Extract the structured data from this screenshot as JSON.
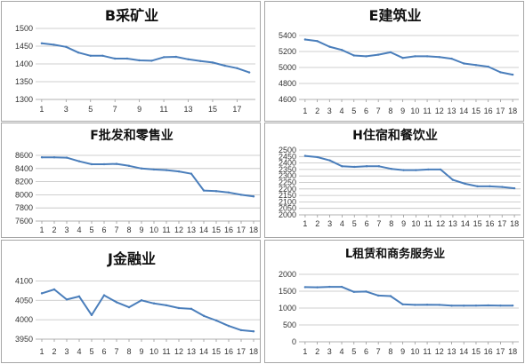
{
  "chart_data": [
    {
      "type": "line",
      "title": "B采矿业",
      "x": [
        1,
        2,
        3,
        4,
        5,
        6,
        7,
        8,
        9,
        10,
        11,
        12,
        13,
        14,
        15,
        16,
        17,
        18
      ],
      "xticks": [
        1,
        3,
        5,
        7,
        9,
        11,
        13,
        15,
        17
      ],
      "yticks": [
        1300,
        1350,
        1400,
        1450,
        1500
      ],
      "ylim": [
        1300,
        1500
      ],
      "grid": true,
      "color": "#4a7ebb",
      "values": [
        1458,
        1454,
        1448,
        1432,
        1423,
        1423,
        1415,
        1415,
        1410,
        1409,
        1419,
        1420,
        1413,
        1408,
        1404,
        1395,
        1388,
        1376
      ]
    },
    {
      "type": "line",
      "title": "E建筑业",
      "x": [
        1,
        2,
        3,
        4,
        5,
        6,
        7,
        8,
        9,
        10,
        11,
        12,
        13,
        14,
        15,
        16,
        17,
        18
      ],
      "xticks": [
        1,
        2,
        3,
        4,
        5,
        6,
        7,
        8,
        9,
        10,
        11,
        12,
        13,
        14,
        15,
        16,
        17,
        18
      ],
      "yticks": [
        4600,
        4800,
        5000,
        5200,
        5400
      ],
      "ylim": [
        4600,
        5400
      ],
      "grid": true,
      "color": "#4a7ebb",
      "values": [
        5350,
        5330,
        5260,
        5220,
        5150,
        5140,
        5160,
        5190,
        5120,
        5140,
        5140,
        5130,
        5110,
        5050,
        5030,
        5010,
        4940,
        4910
      ]
    },
    {
      "type": "line",
      "title": "F批发和零售业",
      "x": [
        1,
        2,
        3,
        4,
        5,
        6,
        7,
        8,
        9,
        10,
        11,
        12,
        13,
        14,
        15,
        16,
        17,
        18
      ],
      "xticks": [
        1,
        2,
        3,
        4,
        5,
        6,
        7,
        8,
        9,
        10,
        11,
        12,
        13,
        14,
        15,
        16,
        17,
        18
      ],
      "yticks": [
        7600,
        7800,
        8000,
        8200,
        8400,
        8600
      ],
      "ylim": [
        7600,
        8600
      ],
      "grid": true,
      "color": "#4a7ebb",
      "values": [
        8570,
        8570,
        8565,
        8510,
        8465,
        8465,
        8470,
        8440,
        8400,
        8385,
        8375,
        8355,
        8320,
        8065,
        8055,
        8035,
        8000,
        7975
      ]
    },
    {
      "type": "line",
      "title": "H住宿和餐饮业",
      "x": [
        1,
        2,
        3,
        4,
        5,
        6,
        7,
        8,
        9,
        10,
        11,
        12,
        13,
        14,
        15,
        16,
        17,
        18
      ],
      "xticks": [
        1,
        2,
        3,
        4,
        5,
        6,
        7,
        8,
        9,
        10,
        11,
        12,
        13,
        14,
        15,
        16,
        17,
        18
      ],
      "yticks": [
        2000,
        2050,
        2100,
        2150,
        2200,
        2250,
        2300,
        2350,
        2400,
        2450,
        2500
      ],
      "ylim": [
        2000,
        2500
      ],
      "grid": true,
      "color": "#4a7ebb",
      "values": [
        2455,
        2445,
        2420,
        2375,
        2370,
        2375,
        2375,
        2355,
        2345,
        2345,
        2350,
        2350,
        2270,
        2240,
        2220,
        2220,
        2215,
        2205
      ]
    },
    {
      "type": "line",
      "title": "J金融业",
      "x": [
        1,
        2,
        3,
        4,
        5,
        6,
        7,
        8,
        9,
        10,
        11,
        12,
        13,
        14,
        15,
        16,
        17,
        18
      ],
      "xticks": [
        1,
        2,
        3,
        4,
        5,
        6,
        7,
        8,
        9,
        10,
        11,
        12,
        13,
        14,
        15,
        16,
        17,
        18
      ],
      "yticks": [
        3950,
        4000,
        4050,
        4100
      ],
      "ylim": [
        3950,
        4110
      ],
      "grid": true,
      "color": "#4a7ebb",
      "values": [
        4068,
        4078,
        4052,
        4060,
        4012,
        4063,
        4045,
        4032,
        4050,
        4042,
        4037,
        4030,
        4028,
        4010,
        3998,
        3984,
        3973,
        3970
      ]
    },
    {
      "type": "line",
      "title": "L租赁和商务服务业",
      "x": [
        1,
        2,
        3,
        4,
        5,
        6,
        7,
        8,
        9,
        10,
        11,
        12,
        13,
        14,
        15,
        16,
        17,
        18
      ],
      "xticks": [
        1,
        2,
        3,
        4,
        5,
        6,
        7,
        8,
        9,
        10,
        11,
        12,
        13,
        14,
        15,
        16,
        17,
        18
      ],
      "yticks": [
        0,
        500,
        1000,
        1500,
        2000
      ],
      "ylim": [
        0,
        2000
      ],
      "grid": true,
      "color": "#4a7ebb",
      "values": [
        1620,
        1615,
        1630,
        1630,
        1480,
        1490,
        1370,
        1355,
        1110,
        1095,
        1100,
        1095,
        1070,
        1070,
        1075,
        1080,
        1075,
        1075
      ]
    }
  ]
}
